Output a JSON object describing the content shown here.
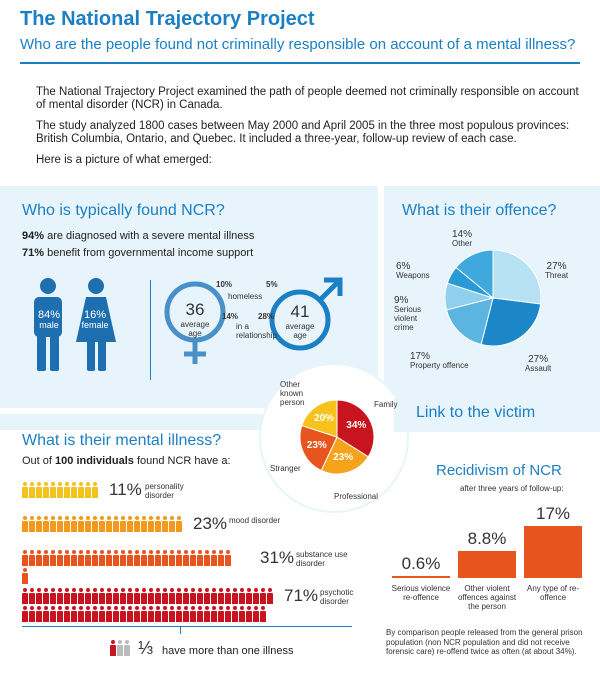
{
  "header": {
    "title": "The National Trajectory Project",
    "subtitle": "Who are the people found not criminally responsible on account of a mental illness?"
  },
  "intro": {
    "p1": "The National Trajectory Project examined the path of people deemed not criminally responsible on account of mental disorder (NCR) in Canada.",
    "p2": "The study analyzed 1800 cases between May 2000 and April 2005 in the three most populous provinces: British Columbia, Ontario, and Quebec. It included a three-year, follow-up review of each case.",
    "p3": "Here is a picture of what emerged:"
  },
  "who": {
    "title": "Who is typically found NCR?",
    "stat1_bold": "94%",
    "stat1_text": " are diagnosed with a severe mental illness",
    "stat2_bold": "71%",
    "stat2_text": " benefit from governmental income support",
    "male_pct": "84%",
    "male_label": "male",
    "female_pct": "16%",
    "female_label": "female",
    "female_age": "36",
    "female_age_label": "average age",
    "male_age": "41",
    "male_age_label": "average age",
    "homeless_female": "10%",
    "homeless_male": "5%",
    "homeless_label": "homeless",
    "relationship_female": "14%",
    "relationship_male": "28%",
    "relationship_label": "in a relationship",
    "colors": {
      "female_symbol": "#4a90c8",
      "male_symbol": "#1b7fc4",
      "figure": "#1e6fb0"
    }
  },
  "offence": {
    "title": "What is their offence?",
    "slices": [
      {
        "label": "Threat",
        "pct": "27%",
        "value": 27,
        "color": "#b6e2f3"
      },
      {
        "label": "Assault",
        "pct": "27%",
        "value": 27,
        "color": "#1b87c9"
      },
      {
        "label": "Property offence",
        "pct": "17%",
        "value": 17,
        "color": "#5cb5e0"
      },
      {
        "label": "Serious violent crime",
        "pct": "9%",
        "value": 9,
        "color": "#8fd0ee"
      },
      {
        "label": "Weapons",
        "pct": "6%",
        "value": 6,
        "color": "#2a9ad6"
      },
      {
        "label": "Other",
        "pct": "14%",
        "value": 14,
        "color": "#3fa9dd"
      }
    ]
  },
  "victim": {
    "title": "Link to the victim",
    "slices": [
      {
        "label": "Family",
        "pct": "34%",
        "value": 34,
        "color": "#c8141e"
      },
      {
        "label": "Professional",
        "pct": "23%",
        "value": 23,
        "color": "#f5a31a"
      },
      {
        "label": "Stranger",
        "pct": "23%",
        "value": 23,
        "color": "#e8541e"
      },
      {
        "label": "Other known person",
        "pct": "20%",
        "value": 20,
        "color": "#f7c21c"
      }
    ]
  },
  "mental": {
    "title": "What is their mental illness?",
    "intro_pre": "Out of ",
    "intro_bold": "100 individuals",
    "intro_post": " found NCR have a:",
    "rows": [
      {
        "pct": "11%",
        "label": "personality disorder",
        "count": 11,
        "color": "#f4c21c"
      },
      {
        "pct": "23%",
        "label": "mood disorder",
        "count": 23,
        "color": "#f39a1c"
      },
      {
        "pct": "31%",
        "label": "substance use disorder",
        "count": 31,
        "color": "#e8541e"
      },
      {
        "pct": "71%",
        "label": "psychotic disorder",
        "count": 71,
        "color": "#c8141e"
      }
    ],
    "fraction": "⅓",
    "fraction_text": "have more than one illness"
  },
  "recid": {
    "title": "Recidivism of NCR",
    "subtitle": "after three years of follow-up:",
    "bars": [
      {
        "pct": "0.6%",
        "value": 0.6,
        "label": "Serious violence re-offence"
      },
      {
        "pct": "8.8%",
        "value": 8.8,
        "label": "Other violent offences against the person"
      },
      {
        "pct": "17%",
        "value": 17,
        "label": "Any type of re-offence"
      }
    ],
    "color": "#e8541e",
    "note": "By comparison people released from the general prison population (non NCR population and did not receive forensic care) re-offend twice as often (at about 34%)."
  }
}
